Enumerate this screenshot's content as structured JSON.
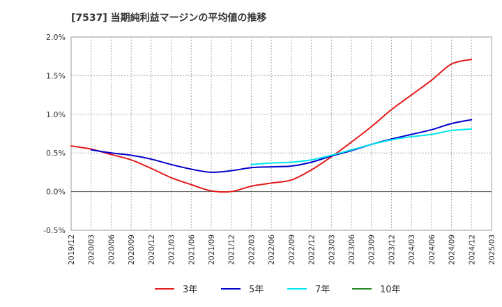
{
  "chart_data": {
    "type": "line",
    "title": "[7537]  当期純利益マージンの平均値の推移",
    "xlabel": "",
    "ylabel": "",
    "ylim": [
      -0.5,
      2.0
    ],
    "yticks": [
      2.0,
      1.5,
      1.0,
      0.5,
      0.0,
      -0.5
    ],
    "ytick_labels": [
      "2.0%",
      "1.5%",
      "1.0%",
      "0.5%",
      "0.0%",
      "-0.5%"
    ],
    "xlim": [
      "2019/12",
      "2025/03"
    ],
    "xtick_labels": [
      "2019/12",
      "2020/03",
      "2020/06",
      "2020/09",
      "2020/12",
      "2021/03",
      "2021/06",
      "2021/09",
      "2021/12",
      "2022/03",
      "2022/06",
      "2022/09",
      "2022/12",
      "2023/03",
      "2023/06",
      "2023/09",
      "2023/12",
      "2024/03",
      "2024/06",
      "2024/09",
      "2024/12",
      "2025/03"
    ],
    "grid": true,
    "legend_position": "bottom",
    "series": [
      {
        "name": "3年",
        "color": "#e41a1c",
        "x": [
          "2019/12",
          "2020/03",
          "2020/06",
          "2020/09",
          "2020/12",
          "2021/03",
          "2021/06",
          "2021/09",
          "2021/12",
          "2022/03",
          "2022/06",
          "2022/09",
          "2022/12",
          "2023/03",
          "2023/06",
          "2023/09",
          "2023/12",
          "2024/03",
          "2024/06",
          "2024/09",
          "2024/12"
        ],
        "values": [
          0.59,
          0.55,
          0.48,
          0.41,
          0.3,
          0.18,
          0.09,
          0.01,
          0.0,
          0.07,
          0.11,
          0.15,
          0.28,
          0.45,
          0.64,
          0.84,
          1.06,
          1.25,
          1.44,
          1.65,
          1.71
        ]
      },
      {
        "name": "5年",
        "color": "#0000cd",
        "x": [
          "2020/03",
          "2020/06",
          "2020/09",
          "2020/12",
          "2021/03",
          "2021/06",
          "2021/09",
          "2021/12",
          "2022/03",
          "2022/06",
          "2022/09",
          "2022/12",
          "2023/03",
          "2023/06",
          "2023/09",
          "2023/12",
          "2024/03",
          "2024/06",
          "2024/09",
          "2024/12"
        ],
        "values": [
          0.54,
          0.5,
          0.47,
          0.42,
          0.35,
          0.29,
          0.25,
          0.27,
          0.31,
          0.32,
          0.33,
          0.38,
          0.46,
          0.53,
          0.61,
          0.68,
          0.74,
          0.8,
          0.88,
          0.93
        ]
      },
      {
        "name": "7年",
        "color": "#00e5ee",
        "x": [
          "2022/03",
          "2022/06",
          "2022/09",
          "2022/12",
          "2023/03",
          "2023/06",
          "2023/09",
          "2023/12",
          "2024/03",
          "2024/06",
          "2024/09",
          "2024/12"
        ],
        "values": [
          0.35,
          0.37,
          0.38,
          0.41,
          0.47,
          0.54,
          0.61,
          0.67,
          0.71,
          0.74,
          0.79,
          0.81
        ]
      },
      {
        "name": "10年",
        "color": "#228b22",
        "x": [],
        "values": []
      }
    ]
  }
}
